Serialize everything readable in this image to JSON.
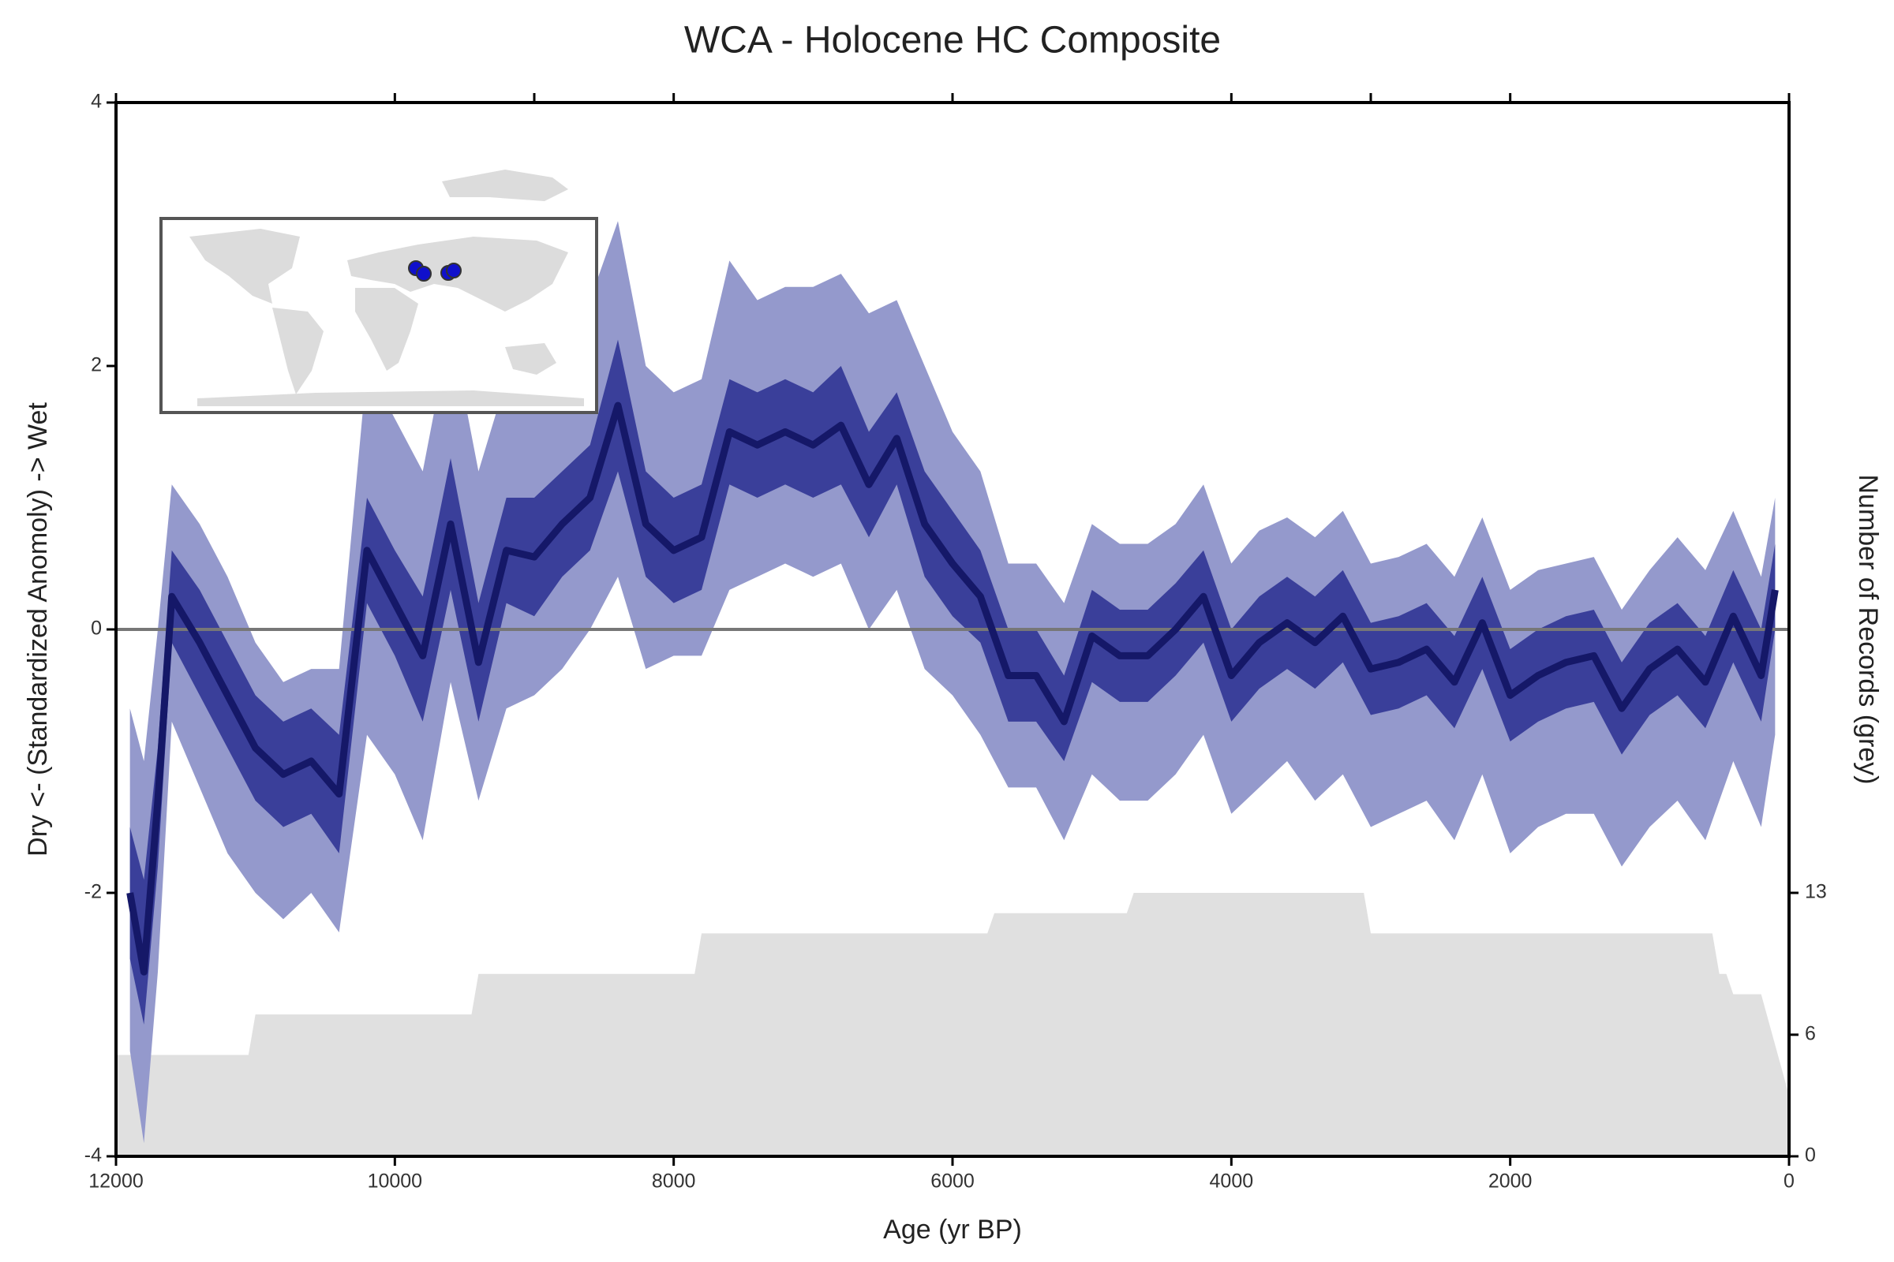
{
  "chart_data": {
    "type": "line",
    "title": "WCA - Holocene HC Composite",
    "xlabel": "Age (yr BP)",
    "ylabel": "Dry <- (Standardized Anomoly) -> Wet",
    "y2label": "Number of Records (grey)",
    "xlim": [
      12000,
      0
    ],
    "xticks": [
      12000,
      10000,
      8000,
      6000,
      4000,
      2000,
      0
    ],
    "xticks_top": [
      9000,
      6000,
      3000
    ],
    "ylim": [
      -4,
      4
    ],
    "yticks": [
      4,
      2,
      0,
      -2,
      -4
    ],
    "y2lim": [
      0,
      52
    ],
    "y2ticks": [
      0,
      6,
      13
    ],
    "hline": 0,
    "hline_color": "#777777",
    "x": [
      11900,
      11800,
      11700,
      11600,
      11400,
      11200,
      11000,
      10800,
      10600,
      10400,
      10200,
      10000,
      9800,
      9600,
      9400,
      9200,
      9000,
      8800,
      8600,
      8400,
      8200,
      8000,
      7800,
      7600,
      7400,
      7200,
      7000,
      6800,
      6600,
      6400,
      6200,
      6000,
      5800,
      5600,
      5400,
      5200,
      5000,
      4800,
      4600,
      4400,
      4200,
      4000,
      3800,
      3600,
      3400,
      3200,
      3000,
      2800,
      2600,
      2400,
      2200,
      2000,
      1800,
      1600,
      1400,
      1200,
      1000,
      800,
      600,
      400,
      200,
      100
    ],
    "series": [
      {
        "color": "#151868",
        "values": [
          -2.0,
          -2.6,
          -1.3,
          0.25,
          -0.1,
          -0.5,
          -0.9,
          -1.1,
          -1.0,
          -1.25,
          0.6,
          0.2,
          -0.2,
          0.8,
          -0.25,
          0.6,
          0.55,
          0.8,
          1.0,
          1.7,
          0.8,
          0.6,
          0.7,
          1.5,
          1.4,
          1.5,
          1.4,
          1.55,
          1.1,
          1.45,
          0.8,
          0.5,
          0.25,
          -0.35,
          -0.35,
          -0.7,
          -0.05,
          -0.2,
          -0.2,
          0.0,
          0.25,
          -0.35,
          -0.1,
          0.05,
          -0.1,
          0.1,
          -0.3,
          -0.25,
          -0.15,
          -0.4,
          0.05,
          -0.5,
          -0.35,
          -0.25,
          -0.2,
          -0.6,
          -0.3,
          -0.15,
          -0.4,
          0.1,
          -0.35,
          0.3
        ]
      }
    ],
    "bands": [
      {
        "color": "#9499cc",
        "upper": [
          -0.6,
          -1.0,
          0.0,
          1.1,
          0.8,
          0.4,
          -0.1,
          -0.4,
          -0.3,
          -0.3,
          2.0,
          1.6,
          1.2,
          2.3,
          1.2,
          1.9,
          1.9,
          2.2,
          2.5,
          3.1,
          2.0,
          1.8,
          1.9,
          2.8,
          2.5,
          2.6,
          2.6,
          2.7,
          2.4,
          2.5,
          2.0,
          1.5,
          1.2,
          0.5,
          0.5,
          0.2,
          0.8,
          0.65,
          0.65,
          0.8,
          1.1,
          0.5,
          0.75,
          0.85,
          0.7,
          0.9,
          0.5,
          0.55,
          0.65,
          0.4,
          0.85,
          0.3,
          0.45,
          0.5,
          0.55,
          0.15,
          0.45,
          0.7,
          0.45,
          0.9,
          0.4,
          1.0
        ],
        "lower": [
          -3.2,
          -3.9,
          -2.6,
          -0.7,
          -1.2,
          -1.7,
          -2.0,
          -2.2,
          -2.0,
          -2.3,
          -0.8,
          -1.1,
          -1.6,
          -0.4,
          -1.3,
          -0.6,
          -0.5,
          -0.3,
          0.0,
          0.4,
          -0.3,
          -0.2,
          -0.2,
          0.3,
          0.4,
          0.5,
          0.4,
          0.5,
          0.0,
          0.3,
          -0.3,
          -0.5,
          -0.8,
          -1.2,
          -1.2,
          -1.6,
          -1.1,
          -1.3,
          -1.3,
          -1.1,
          -0.8,
          -1.4,
          -1.2,
          -1.0,
          -1.3,
          -1.1,
          -1.5,
          -1.4,
          -1.3,
          -1.6,
          -1.1,
          -1.7,
          -1.5,
          -1.4,
          -1.4,
          -1.8,
          -1.5,
          -1.3,
          -1.6,
          -1.0,
          -1.5,
          -0.8
        ]
      },
      {
        "color": "#3a3f9a",
        "upper": [
          -1.5,
          -1.9,
          -0.9,
          0.6,
          0.3,
          -0.1,
          -0.5,
          -0.7,
          -0.6,
          -0.8,
          1.0,
          0.6,
          0.25,
          1.3,
          0.2,
          1.0,
          1.0,
          1.2,
          1.4,
          2.2,
          1.2,
          1.0,
          1.1,
          1.9,
          1.8,
          1.9,
          1.8,
          2.0,
          1.5,
          1.8,
          1.2,
          0.9,
          0.6,
          0.0,
          0.0,
          -0.35,
          0.3,
          0.15,
          0.15,
          0.35,
          0.6,
          0.0,
          0.25,
          0.4,
          0.25,
          0.45,
          0.05,
          0.1,
          0.2,
          -0.05,
          0.4,
          -0.15,
          0.0,
          0.1,
          0.15,
          -0.25,
          0.05,
          0.2,
          -0.05,
          0.45,
          0.0,
          0.65
        ],
        "lower": [
          -2.5,
          -3.0,
          -1.8,
          -0.1,
          -0.5,
          -0.9,
          -1.3,
          -1.5,
          -1.4,
          -1.7,
          0.2,
          -0.2,
          -0.7,
          0.3,
          -0.7,
          0.2,
          0.1,
          0.4,
          0.6,
          1.2,
          0.4,
          0.2,
          0.3,
          1.1,
          1.0,
          1.1,
          1.0,
          1.1,
          0.7,
          1.1,
          0.4,
          0.1,
          -0.1,
          -0.7,
          -0.7,
          -1.0,
          -0.4,
          -0.55,
          -0.55,
          -0.35,
          -0.1,
          -0.7,
          -0.45,
          -0.3,
          -0.45,
          -0.25,
          -0.65,
          -0.6,
          -0.5,
          -0.75,
          -0.3,
          -0.85,
          -0.7,
          -0.6,
          -0.55,
          -0.95,
          -0.65,
          -0.5,
          -0.75,
          -0.25,
          -0.7,
          0.0
        ]
      }
    ],
    "records": {
      "color": "#e0e0e0",
      "axis": "y2",
      "x": [
        12000,
        11050,
        11000,
        9450,
        9400,
        7850,
        7800,
        5750,
        5700,
        4750,
        4700,
        3050,
        3000,
        550,
        500,
        450,
        400,
        250,
        200,
        0
      ],
      "values": [
        5,
        5,
        7,
        7,
        9,
        9,
        11,
        11,
        12,
        12,
        13,
        13,
        11,
        11,
        9,
        9,
        8,
        8,
        8,
        3
      ]
    }
  }
}
